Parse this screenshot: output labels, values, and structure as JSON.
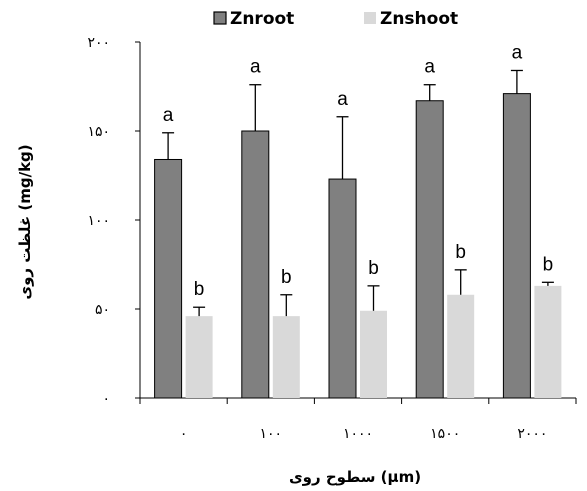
{
  "chart_data": {
    "type": "bar",
    "title": "",
    "xlabel": "سطوح روی (µm)",
    "ylabel": "غلظت روی (mg/kg)",
    "categories": [
      "۰",
      "۱۰۰",
      "۱۰۰۰",
      "۱۵۰۰",
      "۲۰۰۰"
    ],
    "ylim": [
      0,
      200
    ],
    "yticks": [
      0,
      50,
      100,
      150,
      200
    ],
    "ytick_labels": [
      "۰",
      "۵۰",
      "۱۰۰",
      "۱۵۰",
      "۲۰۰"
    ],
    "legend_position": "top",
    "grid": false,
    "series": [
      {
        "name": "Znroot",
        "color": "#808080",
        "values": [
          134,
          150,
          123,
          167,
          171
        ],
        "error": [
          15,
          26,
          35,
          9,
          13
        ],
        "labels": [
          "a",
          "a",
          "a",
          "a",
          "a"
        ]
      },
      {
        "name": "Znshoot",
        "color": "#d9d9d9",
        "values": [
          46,
          46,
          49,
          58,
          63
        ],
        "error": [
          5,
          12,
          14,
          14,
          2
        ],
        "labels": [
          "b",
          "b",
          "b",
          "b",
          "b"
        ]
      }
    ]
  }
}
